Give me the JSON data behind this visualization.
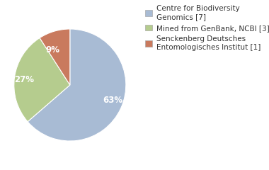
{
  "slices": [
    63,
    27,
    9
  ],
  "labels": [
    "63%",
    "27%",
    "9%"
  ],
  "colors": [
    "#a8bbd4",
    "#b5cc8e",
    "#c97a5e"
  ],
  "legend_labels": [
    "Centre for Biodiversity\nGenomics [7]",
    "Mined from GenBank, NCBI [3]",
    "Senckenberg Deutsches\nEntomologisches Institut [1]"
  ],
  "startangle": 90,
  "text_color": "#ffffff",
  "font_size": 8.5,
  "legend_font_size": 7.5
}
